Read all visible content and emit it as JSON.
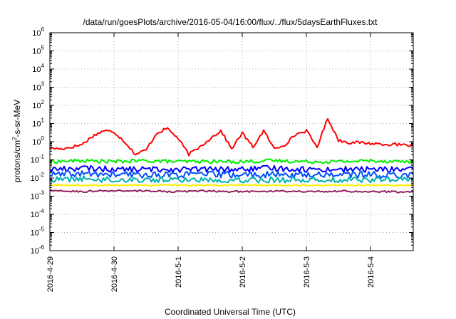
{
  "chart_data": {
    "type": "line",
    "title": "/data/run/goesPlots/archive/2016-05-04/16:00/flux/../flux/5daysEarthFluxes.txt",
    "xlabel": "Coordinated Universal Time (UTC)",
    "ylabel": "protons/cm2-s-sr-MeV",
    "ylabel_parts": {
      "pre": "protons/cm",
      "sup": "2",
      "post": "-s-sr-MeV"
    },
    "y_scale": "log",
    "ylim": [
      1e-06,
      1000000.0
    ],
    "y_ticks": [
      {
        "value": 1e-06,
        "base": "10",
        "exp": "-6"
      },
      {
        "value": 1e-05,
        "base": "10",
        "exp": "-5"
      },
      {
        "value": 0.0001,
        "base": "10",
        "exp": "-4"
      },
      {
        "value": 0.001,
        "base": "10",
        "exp": "-3"
      },
      {
        "value": 0.01,
        "base": "10",
        "exp": "-2"
      },
      {
        "value": 0.1,
        "base": "10",
        "exp": "-1"
      },
      {
        "value": 1,
        "base": "10",
        "exp": "0"
      },
      {
        "value": 10.0,
        "base": "10",
        "exp": "1"
      },
      {
        "value": 100.0,
        "base": "10",
        "exp": "2"
      },
      {
        "value": 1000.0,
        "base": "10",
        "exp": "3"
      },
      {
        "value": 10000.0,
        "base": "10",
        "exp": "4"
      },
      {
        "value": 100000.0,
        "base": "10",
        "exp": "5"
      },
      {
        "value": 1000000.0,
        "base": "10",
        "exp": "6"
      }
    ],
    "x_scale": "time",
    "xlim": [
      "2016-04-29 00:00",
      "2016-05-04 16:00"
    ],
    "x_ticks": [
      "2016-4-29",
      "2016-4-30",
      "2016-5-1",
      "2016-5-2",
      "2016-5-3",
      "2016-5-4"
    ],
    "x_tick_values": [
      "2016-04-29",
      "2016-04-30",
      "2016-05-01",
      "2016-05-02",
      "2016-05-03",
      "2016-05-04"
    ],
    "grid": true,
    "legend": "none",
    "series": [
      {
        "color": "#ff0000",
        "points": [
          [
            "2016-04-29 00:00",
            0.45
          ],
          [
            "2016-04-29 04:00",
            0.4
          ],
          [
            "2016-04-29 08:00",
            0.5
          ],
          [
            "2016-04-29 12:00",
            0.7
          ],
          [
            "2016-04-29 16:00",
            2.0
          ],
          [
            "2016-04-29 20:00",
            4.0
          ],
          [
            "2016-04-30 00:00",
            3.5
          ],
          [
            "2016-04-30 04:00",
            1.0
          ],
          [
            "2016-04-30 08:00",
            0.2
          ],
          [
            "2016-04-30 12:00",
            0.35
          ],
          [
            "2016-04-30 16:00",
            3.0
          ],
          [
            "2016-04-30 20:00",
            5.5
          ],
          [
            "2016-05-01 00:00",
            1.5
          ],
          [
            "2016-05-01 04:00",
            0.2
          ],
          [
            "2016-05-01 08:00",
            0.5
          ],
          [
            "2016-05-01 12:00",
            1.5
          ],
          [
            "2016-05-01 16:00",
            4.0
          ],
          [
            "2016-05-01 20:00",
            0.4
          ],
          [
            "2016-05-02 00:00",
            3.0
          ],
          [
            "2016-05-02 04:00",
            0.5
          ],
          [
            "2016-05-02 08:00",
            4.0
          ],
          [
            "2016-05-02 12:00",
            0.4
          ],
          [
            "2016-05-02 16:00",
            0.7
          ],
          [
            "2016-05-02 20:00",
            2.5
          ],
          [
            "2016-05-03 00:00",
            4.0
          ],
          [
            "2016-05-03 04:00",
            0.5
          ],
          [
            "2016-05-03 08:00",
            20.0
          ],
          [
            "2016-05-03 12:00",
            1.2
          ],
          [
            "2016-05-03 16:00",
            0.9
          ],
          [
            "2016-05-03 20:00",
            0.9
          ],
          [
            "2016-05-04 00:00",
            0.8
          ],
          [
            "2016-05-04 08:00",
            0.7
          ],
          [
            "2016-05-04 16:00",
            0.6
          ]
        ]
      },
      {
        "color": "#00ee00",
        "points": [
          [
            "2016-04-29 00:00",
            0.08
          ],
          [
            "2016-04-29 12:00",
            0.09
          ],
          [
            "2016-04-30 00:00",
            0.08
          ],
          [
            "2016-04-30 12:00",
            0.09
          ],
          [
            "2016-05-01 00:00",
            0.08
          ],
          [
            "2016-05-01 12:00",
            0.08
          ],
          [
            "2016-05-02 00:00",
            0.08
          ],
          [
            "2016-05-02 12:00",
            0.09
          ],
          [
            "2016-05-03 00:00",
            0.08
          ],
          [
            "2016-05-03 12:00",
            0.08
          ],
          [
            "2016-05-04 00:00",
            0.09
          ],
          [
            "2016-05-04 16:00",
            0.08
          ]
        ]
      },
      {
        "color": "#0000ff",
        "points": [
          [
            "2016-04-29 00:00",
            0.03
          ],
          [
            "2016-04-29 12:00",
            0.035
          ],
          [
            "2016-04-30 00:00",
            0.03
          ],
          [
            "2016-04-30 12:00",
            0.03
          ],
          [
            "2016-05-01 00:00",
            0.03
          ],
          [
            "2016-05-01 12:00",
            0.03
          ],
          [
            "2016-05-02 00:00",
            0.03
          ],
          [
            "2016-05-02 12:00",
            0.035
          ],
          [
            "2016-05-03 00:00",
            0.03
          ],
          [
            "2016-05-03 12:00",
            0.03
          ],
          [
            "2016-05-04 00:00",
            0.03
          ],
          [
            "2016-05-04 16:00",
            0.03
          ]
        ]
      },
      {
        "color": "#0050ff",
        "points": [
          [
            "2016-04-29 00:00",
            0.015
          ],
          [
            "2016-04-29 12:00",
            0.017
          ],
          [
            "2016-04-30 00:00",
            0.015
          ],
          [
            "2016-04-30 12:00",
            0.015
          ],
          [
            "2016-05-01 00:00",
            0.015
          ],
          [
            "2016-05-01 12:00",
            0.016
          ],
          [
            "2016-05-02 00:00",
            0.015
          ],
          [
            "2016-05-02 12:00",
            0.015
          ],
          [
            "2016-05-03 00:00",
            0.015
          ],
          [
            "2016-05-03 12:00",
            0.016
          ],
          [
            "2016-05-04 00:00",
            0.015
          ],
          [
            "2016-05-04 16:00",
            0.015
          ]
        ]
      },
      {
        "color": "#00b0b0",
        "points": [
          [
            "2016-04-29 00:00",
            0.008
          ],
          [
            "2016-04-29 12:00",
            0.009
          ],
          [
            "2016-04-30 00:00",
            0.008
          ],
          [
            "2016-04-30 12:00",
            0.008
          ],
          [
            "2016-05-01 00:00",
            0.008
          ],
          [
            "2016-05-01 12:00",
            0.008
          ],
          [
            "2016-05-02 00:00",
            0.008
          ],
          [
            "2016-05-02 12:00",
            0.008
          ],
          [
            "2016-05-03 00:00",
            0.008
          ],
          [
            "2016-05-03 12:00",
            0.008
          ],
          [
            "2016-05-04 00:00",
            0.008
          ],
          [
            "2016-05-04 16:00",
            0.008
          ]
        ]
      },
      {
        "color": "#ffee00",
        "points": [
          [
            "2016-04-29 00:00",
            0.004
          ],
          [
            "2016-04-29 12:00",
            0.004
          ],
          [
            "2016-04-30 00:00",
            0.004
          ],
          [
            "2016-04-30 12:00",
            0.004
          ],
          [
            "2016-05-01 00:00",
            0.004
          ],
          [
            "2016-05-01 12:00",
            0.004
          ],
          [
            "2016-05-02 00:00",
            0.004
          ],
          [
            "2016-05-02 12:00",
            0.004
          ],
          [
            "2016-05-03 00:00",
            0.004
          ],
          [
            "2016-05-03 12:00",
            0.004
          ],
          [
            "2016-05-04 00:00",
            0.004
          ],
          [
            "2016-05-04 16:00",
            0.004
          ]
        ]
      },
      {
        "color": "#902060",
        "points": [
          [
            "2016-04-29 00:00",
            0.002
          ],
          [
            "2016-04-29 12:00",
            0.0018
          ],
          [
            "2016-04-30 00:00",
            0.002
          ],
          [
            "2016-04-30 12:00",
            0.0019
          ],
          [
            "2016-05-01 00:00",
            0.0018
          ],
          [
            "2016-05-01 12:00",
            0.0019
          ],
          [
            "2016-05-02 00:00",
            0.0018
          ],
          [
            "2016-05-02 12:00",
            0.0019
          ],
          [
            "2016-05-03 00:00",
            0.0018
          ],
          [
            "2016-05-03 12:00",
            0.0019
          ],
          [
            "2016-05-04 00:00",
            0.0018
          ],
          [
            "2016-05-04 16:00",
            0.0017
          ]
        ]
      }
    ]
  }
}
